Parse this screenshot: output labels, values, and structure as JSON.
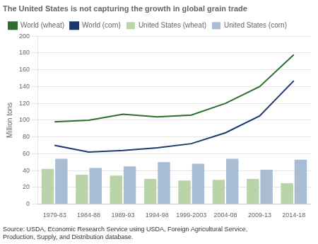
{
  "chart_data": {
    "type": "bar",
    "title": "The United States is not capturing the growth in global grain trade",
    "ylabel": "Million tons",
    "annotations": [
      "Source: USDA, Economic Research Service using USDA, Foreign Agricultural Service,\nProduction, Supply, and Distribution database."
    ],
    "categories": [
      "1979-83",
      "1984-88",
      "1989-93",
      "1994-98",
      "1999-2003",
      "2004-08",
      "2009-13",
      "2014-18"
    ],
    "series": [
      {
        "name": "United States (wheat)",
        "type": "bar",
        "color": "#b8d4a8",
        "values": [
          42,
          35,
          34,
          30,
          28,
          29,
          30,
          25
        ]
      },
      {
        "name": "United States (corn)",
        "type": "bar",
        "color": "#a8bcd4",
        "values": [
          54,
          43,
          45,
          50,
          48,
          54,
          41,
          53
        ]
      },
      {
        "name": "World (wheat)",
        "type": "line",
        "color": "#2d6e2d",
        "values": [
          98,
          100,
          107,
          104,
          106,
          120,
          140,
          178
        ]
      },
      {
        "name": "World (corn)",
        "type": "line",
        "color": "#1a3a6e",
        "values": [
          70,
          62,
          64,
          67,
          72,
          85,
          105,
          147
        ]
      }
    ],
    "ylim": [
      0,
      200
    ],
    "yticks": [
      0,
      20,
      40,
      60,
      80,
      100,
      120,
      140,
      160,
      180,
      200
    ],
    "grid": true,
    "legend": "upper left"
  }
}
